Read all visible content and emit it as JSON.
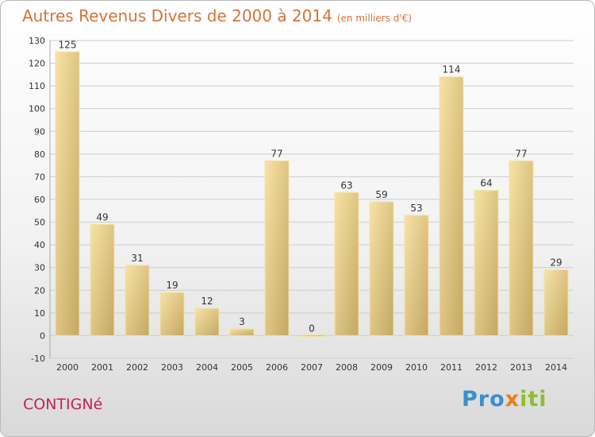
{
  "title": "Autres Revenus Divers de 2000 à 2014",
  "subtitle": "(en milliers d'€)",
  "commune": "CONTIGNé",
  "logo": {
    "part1": "Pro",
    "part2": "x",
    "part3": "iti"
  },
  "colors": {
    "title": "#d2733a",
    "commune": "#c0235e",
    "bar_light": "#f5dc98",
    "bar_dark": "#c8ae66"
  },
  "chart_data": {
    "type": "bar",
    "categories": [
      "2000",
      "2001",
      "2002",
      "2003",
      "2004",
      "2005",
      "2006",
      "2007",
      "2008",
      "2009",
      "2010",
      "2011",
      "2012",
      "2013",
      "2014"
    ],
    "values": [
      125,
      49,
      31,
      19,
      12,
      3,
      77,
      0,
      63,
      59,
      53,
      114,
      64,
      77,
      29
    ],
    "value_labels": [
      "125",
      "49",
      "31",
      "19",
      "12",
      "3",
      "77",
      "0",
      "63",
      "59",
      "53",
      "114",
      "64",
      "77",
      "29"
    ],
    "yticks": [
      -10,
      0,
      10,
      20,
      30,
      40,
      50,
      60,
      70,
      80,
      90,
      100,
      110,
      120,
      130
    ],
    "ylim": [
      -10,
      130
    ],
    "grid": true,
    "title": "Autres Revenus Divers de 2000 à 2014",
    "xlabel": "",
    "ylabel": ""
  }
}
